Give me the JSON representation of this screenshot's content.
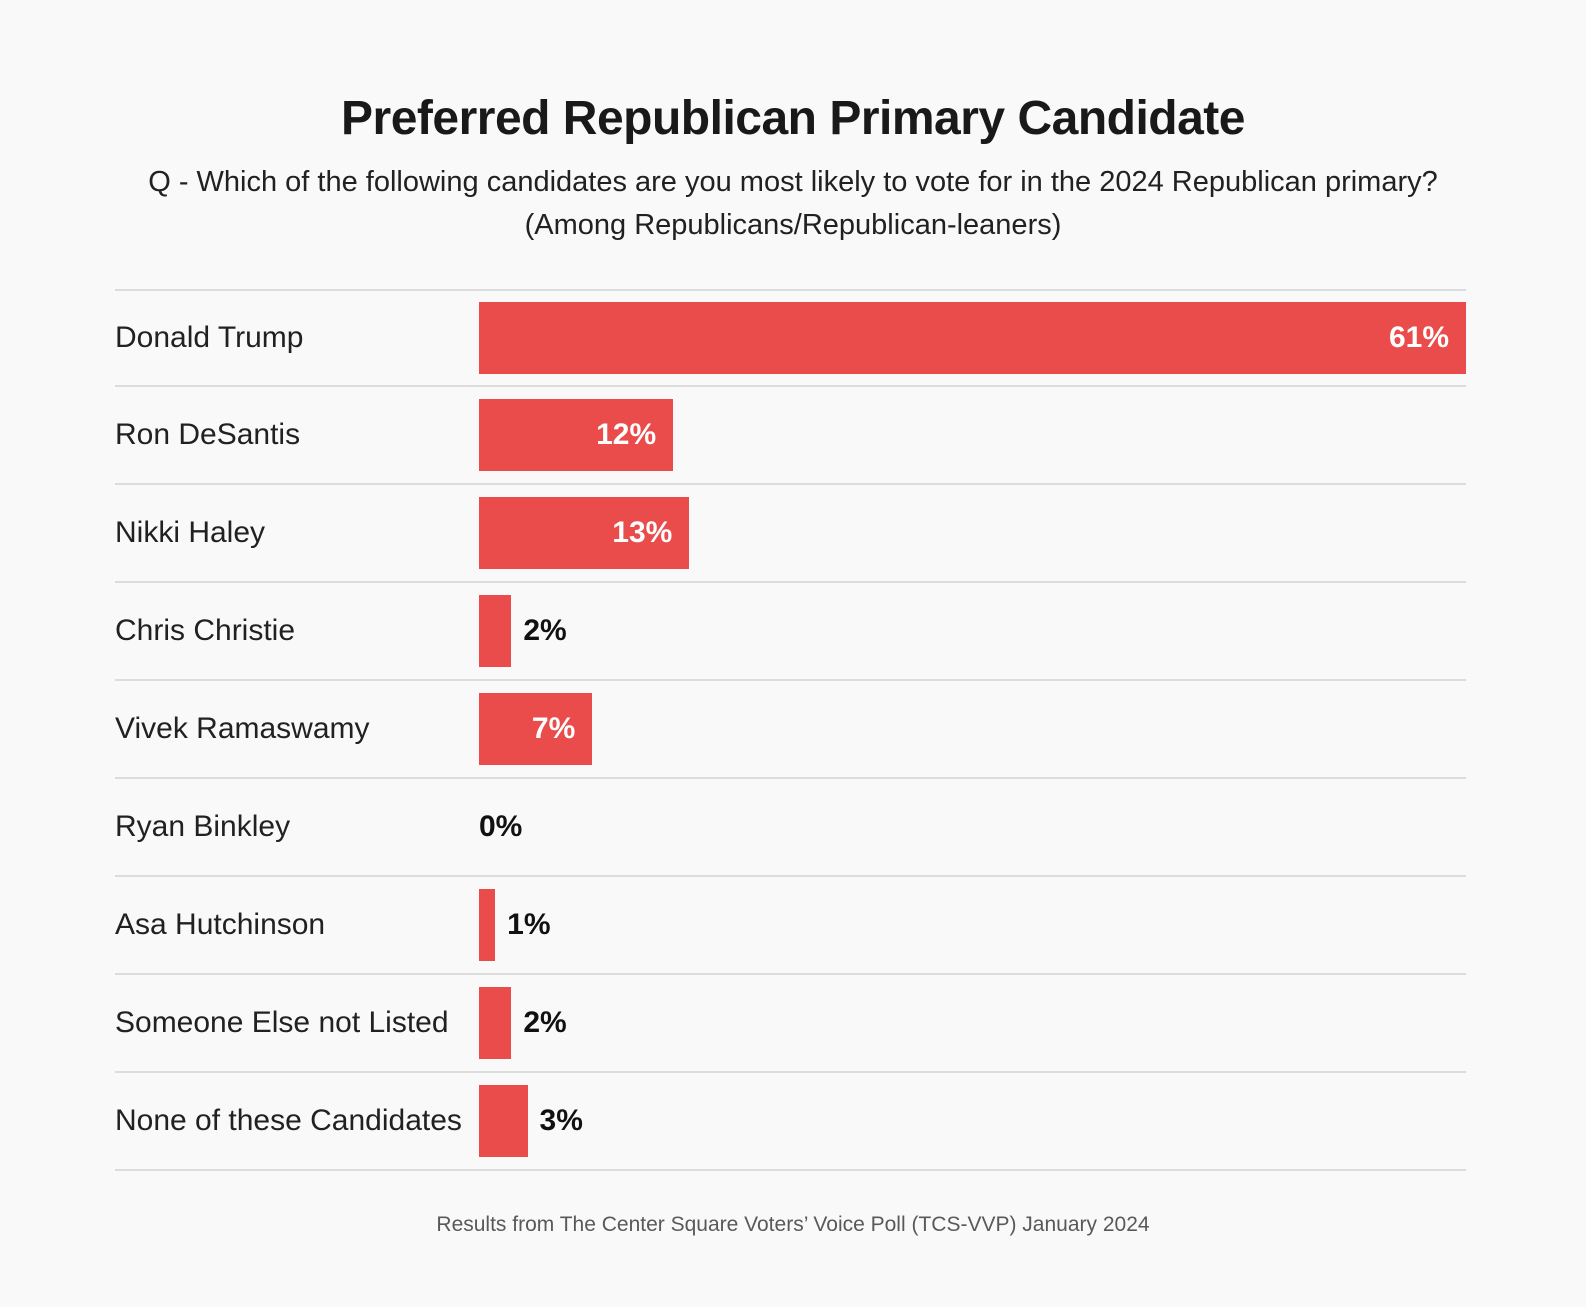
{
  "header": {
    "title": "Preferred Republican Primary Candidate",
    "subtitle_line1": "Q - Which of the following candidates are you most likely to vote for in the 2024 Republican primary?",
    "subtitle_line2": "(Among Republicans/Republican-leaners)"
  },
  "chart_data": {
    "type": "bar",
    "orientation": "horizontal",
    "title": "Preferred Republican Primary Candidate",
    "categories": [
      "Donald Trump",
      "Ron DeSantis",
      "Nikki Haley",
      "Chris Christie",
      "Vivek Ramaswamy",
      "Ryan Binkley",
      "Asa Hutchinson",
      "Someone Else not Listed",
      "None of these Candidates"
    ],
    "values": [
      61,
      12,
      13,
      2,
      7,
      0,
      1,
      2,
      3
    ],
    "value_labels": [
      "61%",
      "12%",
      "13%",
      "2%",
      "7%",
      "0%",
      "1%",
      "2%",
      "3%"
    ],
    "xlim": [
      0,
      61
    ],
    "unit": "%",
    "bar_color": "#ea4c4c",
    "inside_label_min_value": 7,
    "grid": "horizontal-row-separators",
    "legend": "none"
  },
  "footer": {
    "source": "Results from The Center Square Voters’ Voice Poll (TCS-VVP) January 2024"
  },
  "colors": {
    "background": "#f9f9f9",
    "bar": "#ea4c4c",
    "separator": "#dcdcdc",
    "title_text": "#191919",
    "label_text": "#212121",
    "value_inside_text": "#ffffff",
    "value_outside_text": "#111111",
    "footer_text": "#595959"
  }
}
